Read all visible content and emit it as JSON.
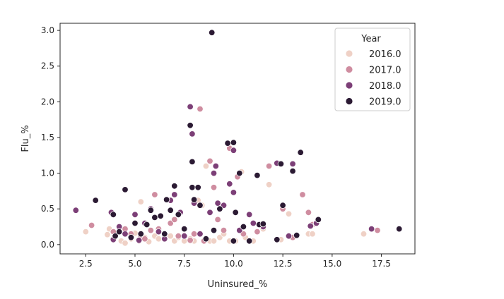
{
  "chart_data": {
    "type": "scatter",
    "title": "",
    "xlabel": "Uninsured_%",
    "ylabel": "Flu_%",
    "xlim": [
      1.2,
      19.2
    ],
    "ylim": [
      -0.13,
      3.1
    ],
    "xticks": [
      "2.5",
      "5.0",
      "7.5",
      "10.0",
      "12.5",
      "15.0",
      "17.5"
    ],
    "xtick_values": [
      2.5,
      5.0,
      7.5,
      10.0,
      12.5,
      15.0,
      17.5
    ],
    "yticks": [
      "0.0",
      "0.5",
      "1.0",
      "1.5",
      "2.0",
      "2.5",
      "3.0"
    ],
    "ytick_values": [
      0.0,
      0.5,
      1.0,
      1.5,
      2.0,
      2.5,
      3.0
    ],
    "grid": false,
    "legend": {
      "title": "Year",
      "placement": "top-right"
    },
    "series": [
      {
        "name": "2016.0",
        "color": "#efd1c6",
        "points": [
          [
            2.5,
            0.18
          ],
          [
            3.6,
            0.14
          ],
          [
            3.7,
            0.22
          ],
          [
            4.0,
            0.13
          ],
          [
            4.3,
            0.05
          ],
          [
            4.5,
            0.02
          ],
          [
            4.8,
            0.08
          ],
          [
            5.0,
            0.16
          ],
          [
            5.2,
            0.05
          ],
          [
            5.3,
            0.6
          ],
          [
            5.5,
            0.1
          ],
          [
            5.7,
            0.04
          ],
          [
            6.0,
            0.12
          ],
          [
            6.2,
            0.08
          ],
          [
            6.5,
            0.08
          ],
          [
            6.8,
            0.12
          ],
          [
            7.0,
            0.05
          ],
          [
            7.2,
            0.1
          ],
          [
            7.5,
            0.05
          ],
          [
            7.8,
            0.08
          ],
          [
            8.0,
            0.05
          ],
          [
            8.2,
            0.62
          ],
          [
            8.4,
            0.55
          ],
          [
            8.6,
            1.1
          ],
          [
            8.8,
            0.05
          ],
          [
            9.0,
            0.05
          ],
          [
            9.3,
            0.1
          ],
          [
            9.5,
            0.15
          ],
          [
            9.8,
            0.05
          ],
          [
            10.1,
            0.05
          ],
          [
            10.4,
            1.02
          ],
          [
            10.6,
            0.1
          ],
          [
            11.0,
            0.05
          ],
          [
            11.5,
            0.22
          ],
          [
            11.8,
            0.84
          ],
          [
            12.4,
            0.07
          ],
          [
            12.8,
            0.43
          ],
          [
            13.0,
            0.1
          ],
          [
            13.8,
            0.15
          ],
          [
            14.0,
            0.15
          ],
          [
            16.6,
            0.15
          ]
        ]
      },
      {
        "name": "2017.0",
        "color": "#cf8da0",
        "points": [
          [
            2.8,
            0.27
          ],
          [
            3.9,
            0.18
          ],
          [
            4.5,
            0.22
          ],
          [
            4.8,
            0.15
          ],
          [
            5.3,
            0.12
          ],
          [
            5.5,
            0.08
          ],
          [
            5.8,
            0.2
          ],
          [
            6.0,
            0.7
          ],
          [
            6.2,
            0.22
          ],
          [
            6.5,
            0.1
          ],
          [
            6.8,
            0.3
          ],
          [
            7.0,
            0.35
          ],
          [
            7.2,
            0.12
          ],
          [
            7.5,
            0.13
          ],
          [
            7.8,
            0.06
          ],
          [
            8.0,
            0.15
          ],
          [
            8.3,
            1.9
          ],
          [
            8.5,
            0.05
          ],
          [
            8.8,
            1.17
          ],
          [
            9.0,
            0.8
          ],
          [
            9.2,
            0.35
          ],
          [
            9.5,
            0.2
          ],
          [
            9.8,
            1.35
          ],
          [
            10.2,
            0.95
          ],
          [
            10.5,
            0.15
          ],
          [
            11.2,
            0.18
          ],
          [
            11.8,
            1.1
          ],
          [
            12.5,
            0.5
          ],
          [
            13.0,
            0.1
          ],
          [
            13.5,
            0.7
          ],
          [
            13.8,
            0.45
          ],
          [
            14.0,
            0.28
          ],
          [
            17.3,
            0.2
          ]
        ]
      },
      {
        "name": "2018.0",
        "color": "#7c3f77",
        "points": [
          [
            2.0,
            0.48
          ],
          [
            3.8,
            0.45
          ],
          [
            3.9,
            0.07
          ],
          [
            4.2,
            0.25
          ],
          [
            4.5,
            0.15
          ],
          [
            5.0,
            0.42
          ],
          [
            5.2,
            0.06
          ],
          [
            5.5,
            0.3
          ],
          [
            5.8,
            0.5
          ],
          [
            6.2,
            0.18
          ],
          [
            6.5,
            0.08
          ],
          [
            6.8,
            0.62
          ],
          [
            7.0,
            0.7
          ],
          [
            7.3,
            0.45
          ],
          [
            7.5,
            0.12
          ],
          [
            7.8,
            1.93
          ],
          [
            7.9,
            1.55
          ],
          [
            8.0,
            0.58
          ],
          [
            8.3,
            0.15
          ],
          [
            8.8,
            0.45
          ],
          [
            9.0,
            1.0
          ],
          [
            9.1,
            1.1
          ],
          [
            9.2,
            0.58
          ],
          [
            9.5,
            0.55
          ],
          [
            9.8,
            0.85
          ],
          [
            10.0,
            0.73
          ],
          [
            10.0,
            1.32
          ],
          [
            10.3,
            0.2
          ],
          [
            10.8,
            0.42
          ],
          [
            11.0,
            0.3
          ],
          [
            11.5,
            0.25
          ],
          [
            12.2,
            1.14
          ],
          [
            12.8,
            0.12
          ],
          [
            13.0,
            1.13
          ],
          [
            13.9,
            0.26
          ],
          [
            14.2,
            0.3
          ],
          [
            17.0,
            0.22
          ]
        ]
      },
      {
        "name": "2019.0",
        "color": "#2b1a33",
        "points": [
          [
            3.0,
            0.62
          ],
          [
            3.9,
            0.42
          ],
          [
            4.0,
            0.12
          ],
          [
            4.2,
            0.18
          ],
          [
            4.5,
            0.77
          ],
          [
            4.8,
            0.1
          ],
          [
            5.0,
            0.3
          ],
          [
            5.3,
            0.15
          ],
          [
            5.6,
            0.28
          ],
          [
            5.8,
            0.48
          ],
          [
            6.0,
            0.38
          ],
          [
            6.3,
            0.4
          ],
          [
            6.5,
            0.15
          ],
          [
            6.6,
            0.63
          ],
          [
            6.8,
            0.48
          ],
          [
            7.0,
            0.82
          ],
          [
            7.2,
            0.42
          ],
          [
            7.5,
            0.22
          ],
          [
            7.8,
            1.67
          ],
          [
            7.9,
            1.16
          ],
          [
            7.9,
            0.8
          ],
          [
            8.0,
            0.63
          ],
          [
            8.2,
            0.8
          ],
          [
            8.3,
            0.55
          ],
          [
            8.6,
            0.08
          ],
          [
            8.9,
            2.97
          ],
          [
            9.0,
            0.2
          ],
          [
            9.3,
            0.5
          ],
          [
            9.7,
            1.42
          ],
          [
            10.0,
            0.05
          ],
          [
            10.0,
            1.43
          ],
          [
            10.1,
            0.45
          ],
          [
            10.3,
            1.0
          ],
          [
            10.5,
            0.25
          ],
          [
            10.8,
            0.05
          ],
          [
            11.2,
            0.97
          ],
          [
            11.3,
            0.28
          ],
          [
            11.5,
            0.29
          ],
          [
            12.2,
            0.07
          ],
          [
            12.4,
            1.13
          ],
          [
            12.5,
            0.55
          ],
          [
            13.0,
            1.03
          ],
          [
            13.2,
            0.13
          ],
          [
            13.4,
            1.29
          ],
          [
            14.3,
            0.35
          ],
          [
            18.4,
            0.22
          ]
        ]
      }
    ]
  }
}
